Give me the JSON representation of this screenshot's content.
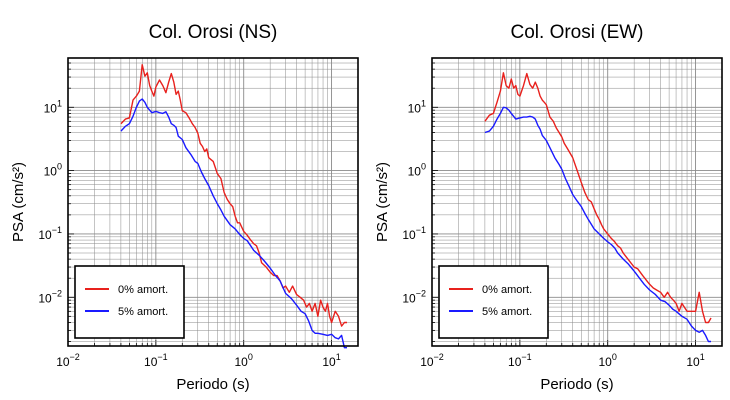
{
  "colors": {
    "series_0pct": "#e8211d",
    "series_5pct": "#1a1aff",
    "grid": "#8a8a8a",
    "frame": "#000000"
  },
  "chart_data": [
    {
      "type": "line",
      "title": "Col. Orosi (NS)",
      "xlabel": "Periodo (s)",
      "ylabel": "PSA (cm/s²)",
      "xscale": "log",
      "yscale": "log",
      "xlim": [
        0.01,
        20
      ],
      "ylim": [
        0.0017,
        60
      ],
      "xticks": [
        {
          "v": 0.01,
          "b": "10",
          "e": "−2"
        },
        {
          "v": 0.1,
          "b": "10",
          "e": "−1"
        },
        {
          "v": 1,
          "b": "10",
          "e": "0"
        },
        {
          "v": 10,
          "b": "10",
          "e": "1"
        }
      ],
      "yticks": [
        {
          "v": 0.01,
          "b": "10",
          "e": "−2"
        },
        {
          "v": 0.1,
          "b": "10",
          "e": "−1"
        },
        {
          "v": 1,
          "b": "10",
          "e": "0"
        },
        {
          "v": 10,
          "b": "10",
          "e": "1"
        }
      ],
      "grid": true,
      "legend_position": "bottom-left",
      "series": [
        {
          "name": "0% amort.",
          "color": "#e8211d",
          "x": [
            0.04,
            0.045,
            0.05,
            0.055,
            0.06,
            0.065,
            0.07,
            0.075,
            0.08,
            0.085,
            0.09,
            0.095,
            0.1,
            0.11,
            0.12,
            0.13,
            0.14,
            0.15,
            0.16,
            0.17,
            0.18,
            0.19,
            0.2,
            0.22,
            0.24,
            0.26,
            0.28,
            0.3,
            0.32,
            0.34,
            0.36,
            0.38,
            0.4,
            0.45,
            0.5,
            0.55,
            0.6,
            0.65,
            0.7,
            0.75,
            0.8,
            0.85,
            0.9,
            1.0,
            1.1,
            1.2,
            1.3,
            1.4,
            1.5,
            1.6,
            1.8,
            2.0,
            2.2,
            2.4,
            2.6,
            2.8,
            3.0,
            3.3,
            3.6,
            4.0,
            4.4,
            4.8,
            5.2,
            5.6,
            6.0,
            6.5,
            7.0,
            7.5,
            8.0,
            8.5,
            9.0,
            9.5,
            10.0,
            11.0,
            12.0,
            13.0,
            14.0,
            15.0
          ],
          "y": [
            5.5,
            6.5,
            6.8,
            13,
            15,
            18,
            47,
            31,
            35,
            22,
            18,
            15,
            21,
            27,
            22,
            17,
            25,
            34,
            25,
            16,
            18,
            13,
            8.8,
            8.2,
            6.7,
            5.5,
            4.8,
            3.9,
            2.7,
            2.4,
            2.0,
            2.2,
            1.6,
            1.4,
            0.9,
            0.75,
            0.45,
            0.35,
            0.3,
            0.27,
            0.19,
            0.15,
            0.15,
            0.11,
            0.095,
            0.08,
            0.07,
            0.065,
            0.05,
            0.035,
            0.03,
            0.025,
            0.022,
            0.022,
            0.018,
            0.014,
            0.015,
            0.012,
            0.015,
            0.011,
            0.01,
            0.009,
            0.007,
            0.008,
            0.006,
            0.008,
            0.005,
            0.009,
            0.007,
            0.006,
            0.008,
            0.005,
            0.004,
            0.006,
            0.005,
            0.0035,
            0.004,
            0.004
          ]
        },
        {
          "name": "5% amort.",
          "color": "#1a1aff",
          "x": [
            0.04,
            0.045,
            0.05,
            0.055,
            0.06,
            0.065,
            0.07,
            0.075,
            0.08,
            0.09,
            0.1,
            0.11,
            0.12,
            0.13,
            0.14,
            0.15,
            0.16,
            0.17,
            0.18,
            0.2,
            0.22,
            0.25,
            0.28,
            0.3,
            0.33,
            0.36,
            0.4,
            0.45,
            0.5,
            0.55,
            0.6,
            0.7,
            0.8,
            0.9,
            1.0,
            1.1,
            1.2,
            1.3,
            1.5,
            1.7,
            2.0,
            2.3,
            2.6,
            3.0,
            3.5,
            4.0,
            4.5,
            5.0,
            5.5,
            6.0,
            6.5,
            7.0,
            8.0,
            9.0,
            10.0,
            11.0,
            12.0,
            13.0,
            14.0,
            15.0
          ],
          "y": [
            4.2,
            5.0,
            5.5,
            7.2,
            10,
            12.5,
            13.5,
            12,
            10,
            8.2,
            8.6,
            8.2,
            8.0,
            8.5,
            7.0,
            5.5,
            5.2,
            4.8,
            3.5,
            3.1,
            2.3,
            1.8,
            1.4,
            1.3,
            0.95,
            0.75,
            0.58,
            0.4,
            0.3,
            0.24,
            0.19,
            0.14,
            0.12,
            0.098,
            0.085,
            0.078,
            0.065,
            0.055,
            0.046,
            0.038,
            0.029,
            0.022,
            0.018,
            0.0115,
            0.0095,
            0.0075,
            0.006,
            0.0055,
            0.0042,
            0.003,
            0.0027,
            0.0027,
            0.0026,
            0.0025,
            0.0026,
            0.0023,
            0.0022,
            0.0025,
            0.0016,
            0.0016
          ]
        }
      ]
    },
    {
      "type": "line",
      "title": "Col. Orosi (EW)",
      "xlabel": "Periodo (s)",
      "ylabel": "PSA (cm/s²)",
      "xscale": "log",
      "yscale": "log",
      "xlim": [
        0.01,
        20
      ],
      "ylim": [
        0.0017,
        60
      ],
      "xticks": [
        {
          "v": 0.01,
          "b": "10",
          "e": "−2"
        },
        {
          "v": 0.1,
          "b": "10",
          "e": "−1"
        },
        {
          "v": 1,
          "b": "10",
          "e": "0"
        },
        {
          "v": 10,
          "b": "10",
          "e": "1"
        }
      ],
      "yticks": [
        {
          "v": 0.01,
          "b": "10",
          "e": "−2"
        },
        {
          "v": 0.1,
          "b": "10",
          "e": "−1"
        },
        {
          "v": 1,
          "b": "10",
          "e": "0"
        },
        {
          "v": 10,
          "b": "10",
          "e": "1"
        }
      ],
      "grid": true,
      "legend_position": "bottom-left",
      "series": [
        {
          "name": "0% amort.",
          "color": "#e8211d",
          "x": [
            0.04,
            0.045,
            0.05,
            0.055,
            0.06,
            0.065,
            0.07,
            0.075,
            0.08,
            0.085,
            0.09,
            0.095,
            0.1,
            0.11,
            0.12,
            0.13,
            0.14,
            0.15,
            0.16,
            0.17,
            0.18,
            0.19,
            0.2,
            0.22,
            0.24,
            0.26,
            0.28,
            0.3,
            0.32,
            0.35,
            0.38,
            0.4,
            0.45,
            0.5,
            0.55,
            0.6,
            0.65,
            0.7,
            0.75,
            0.8,
            0.85,
            0.9,
            1.0,
            1.1,
            1.2,
            1.3,
            1.4,
            1.5,
            1.7,
            2.0,
            2.2,
            2.5,
            2.8,
            3.0,
            3.3,
            3.6,
            4.0,
            4.4,
            4.8,
            5.2,
            5.6,
            6.0,
            6.5,
            7.0,
            8.0,
            9.0,
            10.0,
            11.0,
            12.0,
            13.0,
            14.0,
            15.0
          ],
          "y": [
            6.0,
            7.5,
            8.0,
            12,
            18,
            35,
            22,
            20,
            28,
            20,
            22,
            16,
            15,
            22,
            34,
            23,
            20,
            25,
            20,
            15,
            13,
            12,
            11,
            7.0,
            6.0,
            4.7,
            4.0,
            3.4,
            2.7,
            2.2,
            1.8,
            1.6,
            1.0,
            0.65,
            0.45,
            0.35,
            0.32,
            0.25,
            0.2,
            0.17,
            0.14,
            0.12,
            0.1,
            0.085,
            0.075,
            0.065,
            0.06,
            0.05,
            0.04,
            0.03,
            0.028,
            0.022,
            0.018,
            0.016,
            0.014,
            0.013,
            0.012,
            0.01,
            0.012,
            0.01,
            0.009,
            0.008,
            0.006,
            0.008,
            0.006,
            0.006,
            0.006,
            0.012,
            0.006,
            0.004,
            0.004,
            0.0047
          ]
        },
        {
          "name": "5% amort.",
          "color": "#1a1aff",
          "x": [
            0.04,
            0.045,
            0.05,
            0.055,
            0.06,
            0.065,
            0.07,
            0.075,
            0.08,
            0.09,
            0.1,
            0.11,
            0.12,
            0.13,
            0.14,
            0.15,
            0.16,
            0.17,
            0.18,
            0.2,
            0.22,
            0.25,
            0.28,
            0.3,
            0.33,
            0.36,
            0.4,
            0.45,
            0.5,
            0.55,
            0.6,
            0.7,
            0.8,
            0.9,
            1.0,
            1.1,
            1.2,
            1.3,
            1.5,
            1.7,
            2.0,
            2.3,
            2.6,
            3.0,
            3.5,
            4.0,
            4.5,
            5.0,
            5.5,
            6.0,
            7.0,
            8.0,
            9.0,
            10.0,
            11.0,
            12.0,
            13.0,
            14.0,
            15.0
          ],
          "y": [
            4.0,
            4.2,
            5.0,
            6.5,
            8.0,
            10,
            9.8,
            9.0,
            8.0,
            6.5,
            6.8,
            7.0,
            7.0,
            7.2,
            7.0,
            6.5,
            5.2,
            4.5,
            3.6,
            3.0,
            2.3,
            1.6,
            1.25,
            1.05,
            0.75,
            0.58,
            0.42,
            0.33,
            0.27,
            0.21,
            0.17,
            0.12,
            0.1,
            0.085,
            0.075,
            0.068,
            0.06,
            0.05,
            0.04,
            0.034,
            0.026,
            0.02,
            0.016,
            0.013,
            0.011,
            0.009,
            0.0085,
            0.0075,
            0.0065,
            0.006,
            0.005,
            0.0045,
            0.0035,
            0.003,
            0.0028,
            0.003,
            0.0025,
            0.002,
            0.002
          ]
        }
      ]
    }
  ]
}
